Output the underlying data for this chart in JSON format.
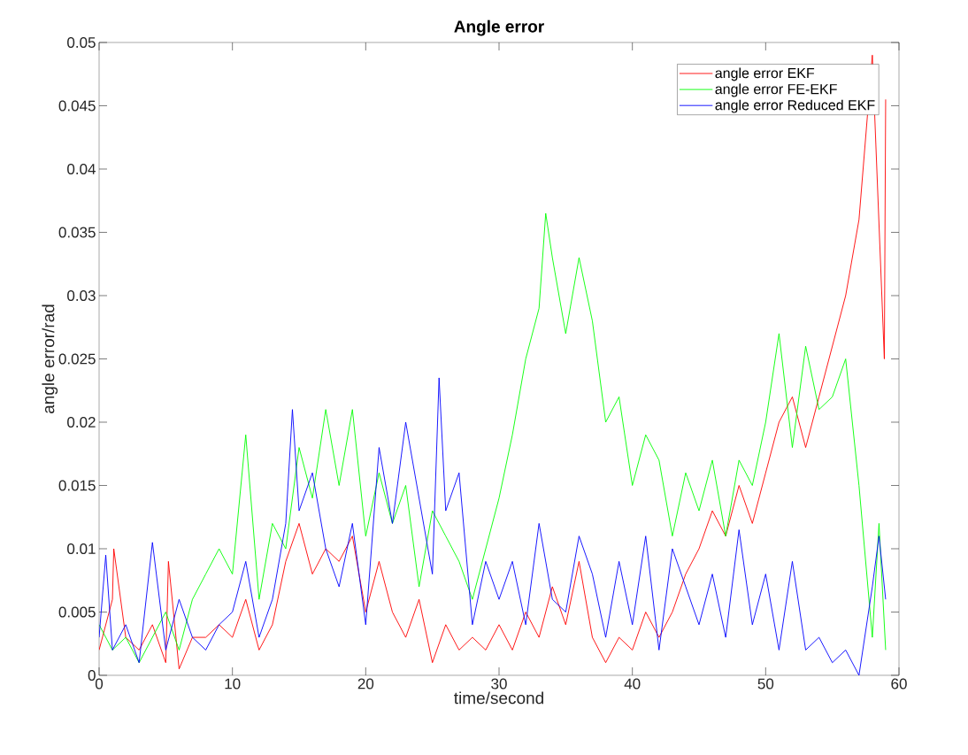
{
  "chart_data": {
    "type": "line",
    "title": "Angle error",
    "xlabel": "time/second",
    "ylabel": "angle error/rad",
    "xlim": [
      0,
      60
    ],
    "ylim": [
      0,
      0.05
    ],
    "xticks": [
      0,
      10,
      20,
      30,
      40,
      50,
      60
    ],
    "yticks": [
      0,
      0.005,
      0.01,
      0.015,
      0.02,
      0.025,
      0.03,
      0.035,
      0.04,
      0.045,
      0.05
    ],
    "grid": false,
    "legend": "top right",
    "marker": "none",
    "line_style": "solid",
    "series": [
      {
        "name": "angle error EKF",
        "color": "#ff0000",
        "x": [
          0,
          1,
          1.1,
          2,
          3,
          4,
          5,
          5.2,
          6,
          7,
          8,
          9,
          10,
          11,
          12,
          13,
          14,
          15,
          16,
          17,
          18,
          19,
          20,
          21,
          22,
          23,
          24,
          25,
          26,
          27,
          28,
          29,
          30,
          31,
          32,
          33,
          34,
          35,
          36,
          37,
          38,
          39,
          40,
          41,
          42,
          43,
          44,
          45,
          46,
          47,
          48,
          49,
          50,
          51,
          52,
          53,
          54,
          55,
          56,
          57,
          58,
          58.9,
          59
        ],
        "values": [
          0.002,
          0.006,
          0.01,
          0.003,
          0.002,
          0.004,
          0.001,
          0.009,
          0.0005,
          0.003,
          0.003,
          0.004,
          0.003,
          0.006,
          0.002,
          0.004,
          0.009,
          0.012,
          0.008,
          0.01,
          0.009,
          0.011,
          0.005,
          0.009,
          0.005,
          0.003,
          0.006,
          0.001,
          0.004,
          0.002,
          0.003,
          0.002,
          0.004,
          0.002,
          0.005,
          0.003,
          0.007,
          0.004,
          0.009,
          0.003,
          0.001,
          0.003,
          0.002,
          0.005,
          0.003,
          0.005,
          0.008,
          0.01,
          0.013,
          0.011,
          0.015,
          0.012,
          0.016,
          0.02,
          0.022,
          0.018,
          0.022,
          0.026,
          0.03,
          0.036,
          0.049,
          0.025,
          0.0455
        ]
      },
      {
        "name": "angle error FE-EKF",
        "color": "#00ff00",
        "x": [
          0,
          1,
          2,
          3,
          4,
          5,
          6,
          7,
          8,
          9,
          10,
          11,
          12,
          13,
          14,
          15,
          16,
          17,
          18,
          19,
          20,
          21,
          22,
          23,
          24,
          25,
          26,
          27,
          28,
          29,
          30,
          31,
          32,
          33,
          33.5,
          34,
          35,
          36,
          37,
          38,
          39,
          40,
          41,
          42,
          43,
          44,
          45,
          46,
          47,
          48,
          49,
          50,
          51,
          52,
          53,
          54,
          55,
          56,
          57,
          58,
          58.5,
          59
        ],
        "values": [
          0.004,
          0.002,
          0.003,
          0.001,
          0.003,
          0.005,
          0.002,
          0.006,
          0.008,
          0.01,
          0.008,
          0.019,
          0.006,
          0.012,
          0.01,
          0.018,
          0.014,
          0.021,
          0.015,
          0.021,
          0.011,
          0.016,
          0.012,
          0.015,
          0.007,
          0.013,
          0.011,
          0.009,
          0.006,
          0.01,
          0.014,
          0.019,
          0.025,
          0.029,
          0.0365,
          0.033,
          0.027,
          0.033,
          0.028,
          0.02,
          0.022,
          0.015,
          0.019,
          0.017,
          0.011,
          0.016,
          0.013,
          0.017,
          0.011,
          0.017,
          0.015,
          0.02,
          0.027,
          0.018,
          0.026,
          0.021,
          0.022,
          0.025,
          0.015,
          0.003,
          0.012,
          0.002
        ]
      },
      {
        "name": "angle error Reduced EKF",
        "color": "#0000ff",
        "x": [
          0,
          0.5,
          1,
          2,
          3,
          4,
          5,
          6,
          7,
          8,
          9,
          10,
          11,
          12,
          13,
          14,
          14.5,
          15,
          16,
          17,
          18,
          19,
          20,
          21,
          22,
          23,
          24,
          25,
          25.5,
          26,
          27,
          28,
          29,
          30,
          31,
          32,
          33,
          34,
          35,
          36,
          37,
          38,
          39,
          40,
          41,
          42,
          43,
          44,
          45,
          46,
          47,
          48,
          49,
          50,
          51,
          52,
          53,
          54,
          55,
          56,
          57,
          58,
          58.5,
          59
        ],
        "values": [
          0.003,
          0.0095,
          0.002,
          0.004,
          0.001,
          0.0105,
          0.002,
          0.006,
          0.003,
          0.002,
          0.004,
          0.005,
          0.009,
          0.003,
          0.006,
          0.012,
          0.021,
          0.013,
          0.016,
          0.01,
          0.007,
          0.012,
          0.004,
          0.018,
          0.012,
          0.02,
          0.014,
          0.008,
          0.0235,
          0.013,
          0.016,
          0.004,
          0.009,
          0.006,
          0.009,
          0.004,
          0.012,
          0.006,
          0.005,
          0.011,
          0.008,
          0.003,
          0.009,
          0.004,
          0.011,
          0.002,
          0.01,
          0.007,
          0.004,
          0.008,
          0.003,
          0.0115,
          0.004,
          0.008,
          0.002,
          0.009,
          0.002,
          0.003,
          0.001,
          0.002,
          0.0,
          0.007,
          0.011,
          0.006
        ]
      }
    ]
  }
}
